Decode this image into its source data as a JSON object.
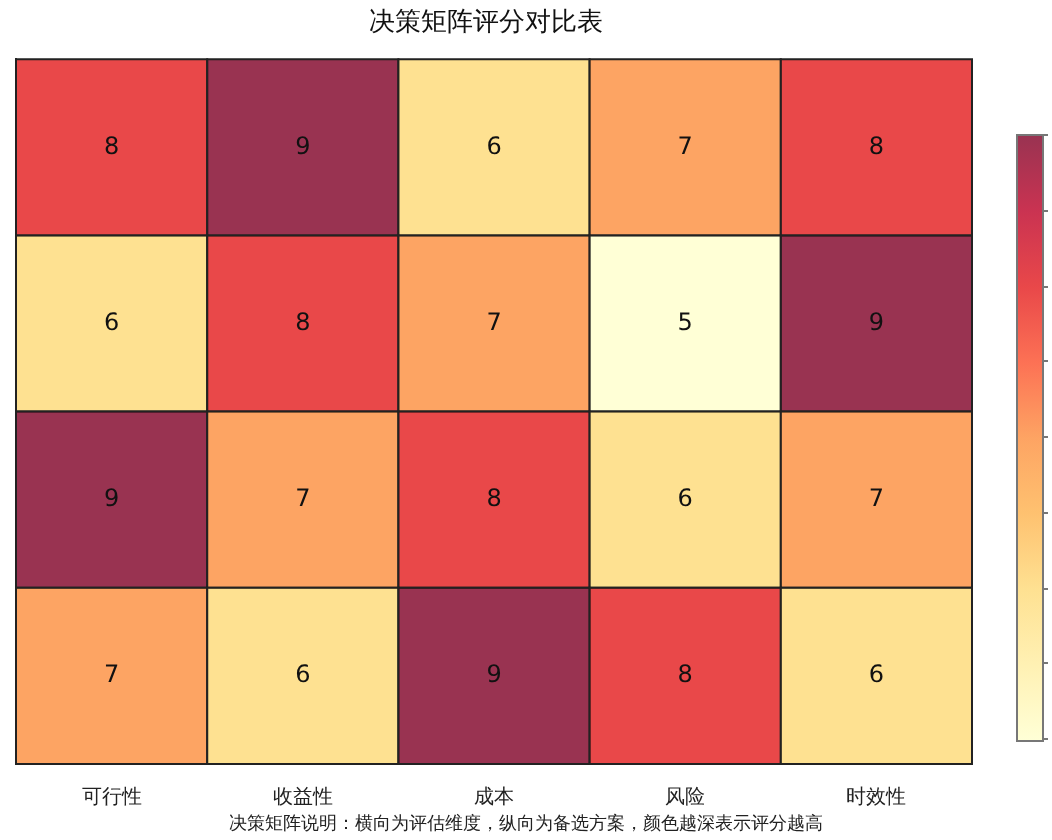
{
  "chart_data": {
    "type": "heatmap",
    "title": "决策矩阵评分对比表",
    "categories": [
      "可行性",
      "收益性",
      "成本",
      "风险",
      "时效性"
    ],
    "y_categories": [
      null,
      null,
      null,
      null
    ],
    "cells": [
      [
        8,
        9,
        6,
        7,
        8
      ],
      [
        6,
        8,
        7,
        5,
        9
      ],
      [
        9,
        7,
        8,
        6,
        7
      ],
      [
        7,
        6,
        9,
        8,
        6
      ]
    ],
    "data_labels": true,
    "tick_labels": "x",
    "annotations": [
      "决策矩阵说明：横向为评估维度，纵向为备选方案，颜色越深表示评分越高"
    ]
  }
}
